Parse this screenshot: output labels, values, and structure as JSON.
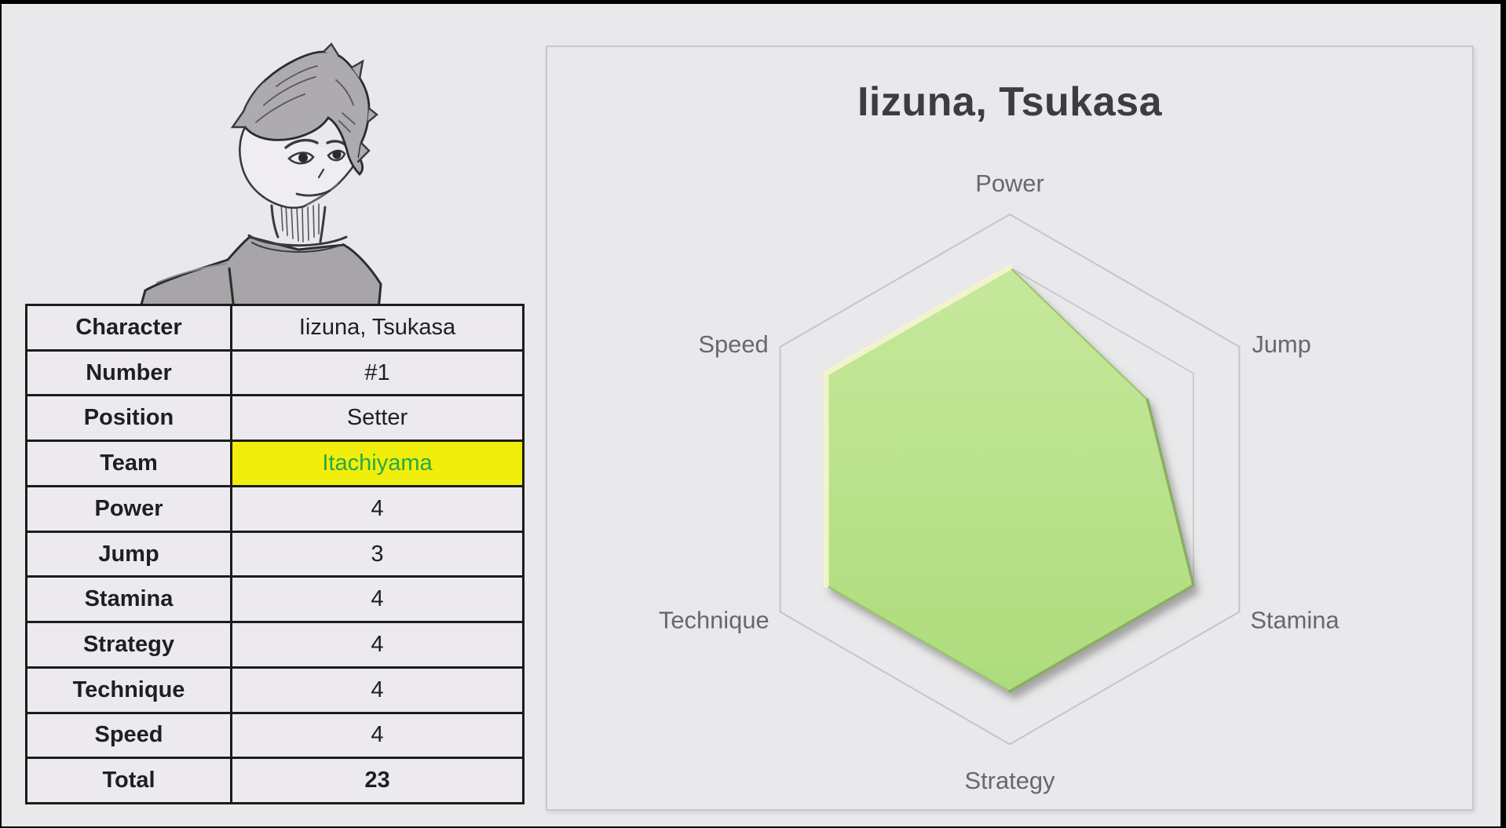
{
  "character_card": {
    "rows": [
      {
        "label": "Character",
        "value": "Iizuna, Tsukasa"
      },
      {
        "label": "Number",
        "value": "#1"
      },
      {
        "label": "Position",
        "value": "Setter"
      },
      {
        "label": "Team",
        "value": "Itachiyama",
        "highlight": true
      },
      {
        "label": "Power",
        "value": "4"
      },
      {
        "label": "Jump",
        "value": "3"
      },
      {
        "label": "Stamina",
        "value": "4"
      },
      {
        "label": "Strategy",
        "value": "4"
      },
      {
        "label": "Technique",
        "value": "4"
      },
      {
        "label": "Speed",
        "value": "4"
      },
      {
        "label": "Total",
        "value": "23",
        "bold_value": true
      }
    ],
    "highlight_bg": "#f0ee0a",
    "highlight_text_color": "#28a84a"
  },
  "chart_data": {
    "type": "radar",
    "title": "Iizuna, Tsukasa",
    "categories": [
      "Power",
      "Jump",
      "Stamina",
      "Strategy",
      "Technique",
      "Speed"
    ],
    "values": [
      4,
      3,
      4,
      4,
      4,
      4
    ],
    "axis_max": 5,
    "grid_levels_visible": [
      4,
      5
    ],
    "legend": "none",
    "fill_color_top": "#c6e89c",
    "fill_color_bottom": "#aedc7c",
    "fill_highlight_color": "#f4f4cd",
    "fill_shadow_edge_color": "#84a95c",
    "grid_color": "#c5c4c8",
    "axis_label_color": "#68676b",
    "title_color": "#3d3d40"
  },
  "portrait": {
    "description": "pencil sketch of character bust"
  }
}
